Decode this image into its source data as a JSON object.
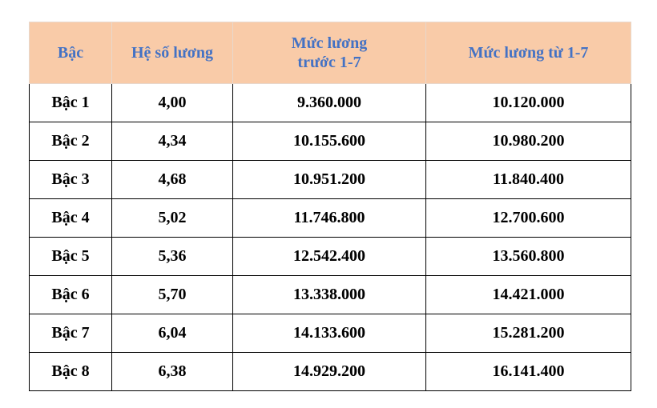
{
  "table": {
    "header": [
      "Bậc",
      "Hệ số lương",
      "Mức lương trước 1-7",
      "Mức lương từ 1-7"
    ],
    "rows": [
      [
        "Bậc 1",
        "4,00",
        "9.360.000",
        "10.120.000"
      ],
      [
        "Bậc 2",
        "4,34",
        "10.155.600",
        "10.980.200"
      ],
      [
        "Bậc 3",
        "4,68",
        "10.951.200",
        "11.840.400"
      ],
      [
        "Bậc 4",
        "5,02",
        "11.746.800",
        "12.700.600"
      ],
      [
        "Bậc 5",
        "5,36",
        "12.542.400",
        "13.560.800"
      ],
      [
        "Bậc 6",
        "5,70",
        "13.338.000",
        "14.421.000"
      ],
      [
        "Bậc 7",
        "6,04",
        "14.133.600",
        "15.281.200"
      ],
      [
        "Bậc 8",
        "6,38",
        "14.929.200",
        "16.141.400"
      ]
    ]
  }
}
